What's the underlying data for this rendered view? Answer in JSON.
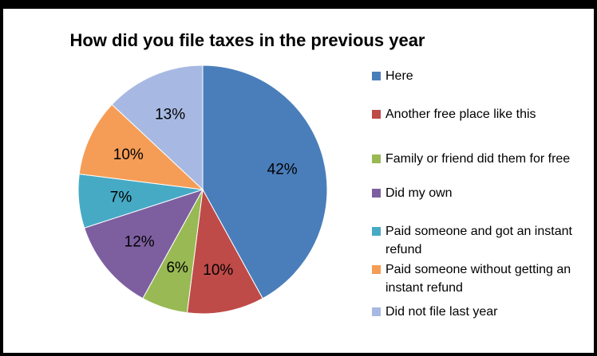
{
  "chart_data": {
    "type": "pie",
    "title": "How did you file taxes in the previous year",
    "legend_position": "right",
    "slices": [
      {
        "name": "Here",
        "value": 42,
        "label": "42%",
        "color": "#4A7EBB"
      },
      {
        "name": "Another free place like this",
        "value": 10,
        "label": "10%",
        "color": "#BE4B48"
      },
      {
        "name": "Family or friend did them for free",
        "value": 6,
        "label": "6%",
        "color": "#98B954"
      },
      {
        "name": "Did my own",
        "value": 12,
        "label": "12%",
        "color": "#7D5FA0"
      },
      {
        "name": "Paid someone and got an instant refund",
        "value": 7,
        "label": "7%",
        "color": "#46AAC5"
      },
      {
        "name": "Paid someone without getting an instant refund",
        "value": 10,
        "label": "10%",
        "color": "#F59D56"
      },
      {
        "name": "Did not file last year",
        "value": 13,
        "label": "13%",
        "color": "#A7B9E3"
      }
    ]
  }
}
